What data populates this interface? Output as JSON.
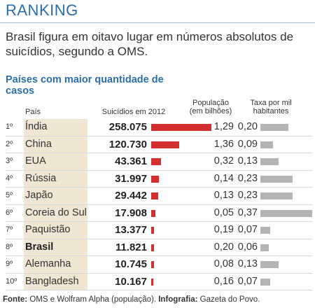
{
  "header": "RANKING",
  "subtitle": "Brasil figura em oitavo lugar em números absolutos de suicídios, segundo a OMS.",
  "section_title": "Países com maior quantidade de casos",
  "columns": {
    "country": "País",
    "suicides": "Suicídios em 2012",
    "population": "População (em bilhões)",
    "rate": "Taxa por mil habitantes"
  },
  "chart_data": {
    "type": "table",
    "ranks": [
      "1º",
      "2º",
      "3º",
      "4º",
      "5º",
      "6º",
      "7º",
      "8º",
      "9º",
      "10º"
    ],
    "countries": [
      "Índia",
      "China",
      "EUA",
      "Rússia",
      "Japão",
      "Coreia do Sul",
      "Paquistão",
      "Brasil",
      "Alemanha",
      "Bangladesh"
    ],
    "suicides": [
      "258.075",
      "120.730",
      "43.361",
      "31.997",
      "29.442",
      "17.908",
      "13.377",
      "11.821",
      "10.745",
      "10.167"
    ],
    "suicides_values": [
      258075,
      120730,
      43361,
      31997,
      29442,
      17908,
      13377,
      11821,
      10745,
      10167
    ],
    "population": [
      "1,29",
      "1,36",
      "0,32",
      "0,14",
      "0,13",
      "0,05",
      "0,19",
      "0,20",
      "0,08",
      "0,16"
    ],
    "rate": [
      "0,20",
      "0,09",
      "0,13",
      "0,23",
      "0,23",
      "0,37",
      "0,07",
      "0,06",
      "0,13",
      "0,07"
    ],
    "rate_values": [
      0.2,
      0.09,
      0.13,
      0.23,
      0.23,
      0.37,
      0.07,
      0.06,
      0.13,
      0.07
    ],
    "highlight": "Brasil",
    "colors": {
      "suicides_bar": "#d32f2f",
      "rate_bar": "#b4b4b4",
      "rank_highlight": "#efe6d4",
      "title": "#2a6ea8"
    }
  },
  "footer": {
    "source_label": "Fonte:",
    "source": " OMS e Wolfram Alpha (população). ",
    "infographic_label": "Infografia:",
    "infographic": " Gazeta do Povo."
  }
}
